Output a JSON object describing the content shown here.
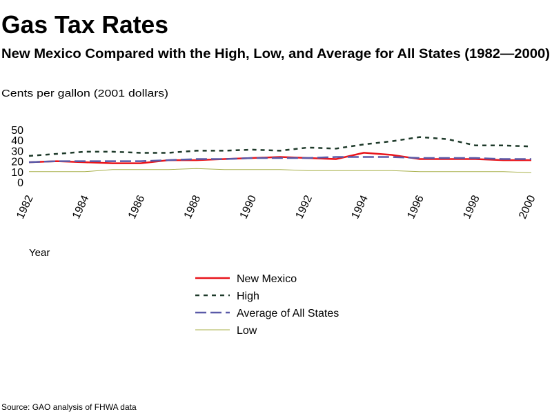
{
  "chart_data": {
    "type": "line",
    "title": "Gas Tax Rates",
    "subtitle": "New Mexico Compared with the High, Low, and Average for All States (1982—2000)",
    "y_label": "Cents per gallon (2001 dollars)",
    "x_label": "Year",
    "source": "Source: GAO analysis of FHWA data",
    "x": [
      1982,
      1983,
      1984,
      1985,
      1986,
      1987,
      1988,
      1989,
      1990,
      1991,
      1992,
      1993,
      1994,
      1995,
      1996,
      1997,
      1998,
      1999,
      2000
    ],
    "xlim": [
      1982,
      2000
    ],
    "xticks": [
      1982,
      1984,
      1986,
      1988,
      1990,
      1992,
      1994,
      1996,
      1998,
      2000
    ],
    "ylim": [
      0,
      50
    ],
    "yticks": [
      0,
      10,
      20,
      30,
      40,
      50
    ],
    "series": [
      {
        "name": "New Mexico",
        "color": "#e8141b",
        "line_style": "solid",
        "values": [
          19,
          20,
          19,
          18,
          18,
          21,
          21,
          22,
          23,
          24,
          23,
          22,
          28,
          26,
          22,
          22,
          22,
          21,
          21
        ]
      },
      {
        "name": "High",
        "color": "#1e3a2a",
        "line_style": "dotted",
        "values": [
          25,
          27,
          29,
          29,
          28,
          28,
          30,
          30,
          31,
          30,
          33,
          32,
          36,
          39,
          43,
          41,
          35,
          35,
          34
        ]
      },
      {
        "name": "Average of All States",
        "color": "#5a5aa8",
        "line_style": "dashed",
        "values": [
          19,
          20,
          20,
          20,
          20,
          21,
          22,
          22,
          23,
          23,
          23,
          24,
          24,
          24,
          23,
          23,
          23,
          22,
          22
        ]
      },
      {
        "name": "Low",
        "color": "#a8b04a",
        "line_style": "thin",
        "values": [
          10,
          10,
          10,
          12,
          12,
          12,
          13,
          12,
          12,
          12,
          11,
          11,
          11,
          11,
          10,
          10,
          10,
          10,
          9
        ]
      }
    ]
  }
}
